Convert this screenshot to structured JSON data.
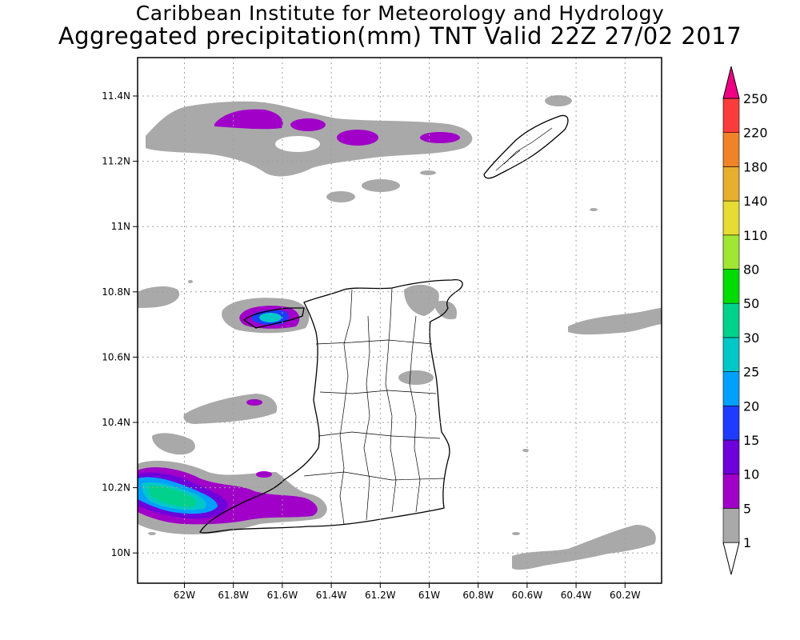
{
  "header": {
    "line1": "Caribbean Institute for Meteorology and Hydrology",
    "line2": "Aggregated precipitation(mm) TNT Valid 22Z 27/02 2017"
  },
  "axes": {
    "x_ticks": [
      "62W",
      "61.8W",
      "61.6W",
      "61.4W",
      "61.2W",
      "61W",
      "60.8W",
      "60.6W",
      "60.4W",
      "60.2W"
    ],
    "y_ticks": [
      "11.4N",
      "11.2N",
      "11N",
      "10.8N",
      "10.6N",
      "10.4N",
      "10.2N",
      "10N"
    ]
  },
  "colorbar": {
    "labels": [
      "1",
      "5",
      "10",
      "15",
      "20",
      "25",
      "30",
      "50",
      "80",
      "110",
      "140",
      "180",
      "220",
      "250"
    ],
    "colors": [
      "#a9a9a9",
      "#a000c8",
      "#6e00dc",
      "#1e3cff",
      "#00a0ff",
      "#00c8c8",
      "#00d28c",
      "#00dc00",
      "#a0e632",
      "#e6dc32",
      "#e6af2d",
      "#f08228",
      "#fa3c3c",
      "#f00082"
    ],
    "bottom_color": "#ffffff"
  },
  "colors": {
    "light_precip": "#a9a9a9",
    "coast": "#000000",
    "grid": "#a0a0a0"
  }
}
